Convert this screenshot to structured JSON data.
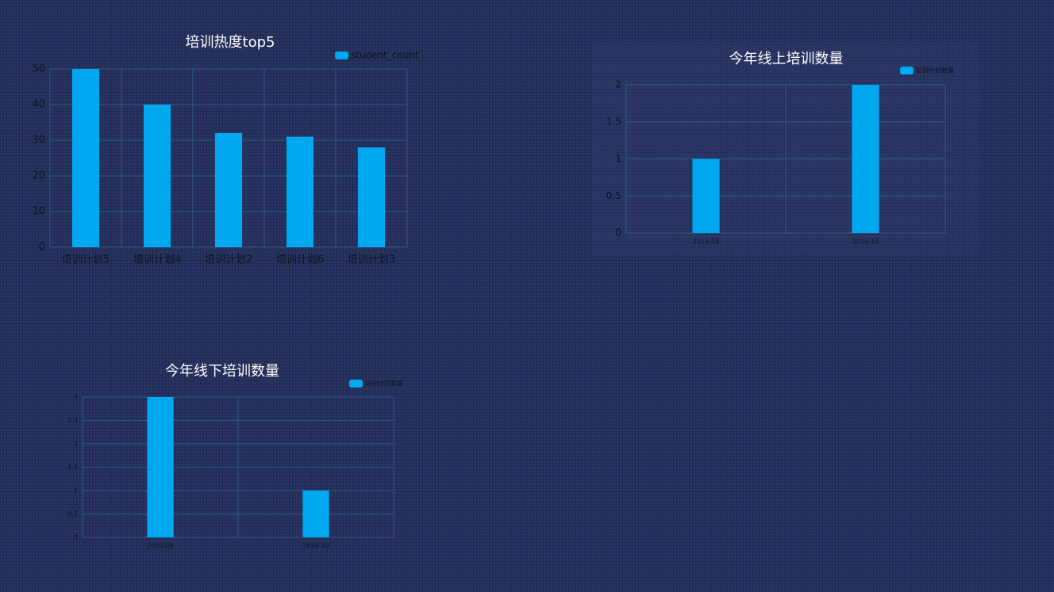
{
  "chart_data": [
    {
      "type": "bar",
      "title": "培训热度top5",
      "categories": [
        "培训计划5",
        "培训计划4",
        "培训计划2",
        "培训计划6",
        "培训计划3"
      ],
      "series": [
        {
          "name": "student_count",
          "values": [
            50,
            40,
            32,
            31,
            28
          ]
        }
      ],
      "ylim": [
        0,
        50
      ],
      "yticks": [
        "0",
        "10",
        "20",
        "30",
        "40",
        "50"
      ],
      "grid": true,
      "legend": "top-right",
      "color": "#00a8f0"
    },
    {
      "type": "bar",
      "title": "今年线上培训数量",
      "categories": [
        "2019-08",
        "2019-10"
      ],
      "series": [
        {
          "name": "培训计划数量",
          "values": [
            1,
            2
          ]
        }
      ],
      "ylim": [
        0,
        2
      ],
      "yticks": [
        "0",
        "0.5",
        "1",
        "1.5",
        "2"
      ],
      "grid": true,
      "legend": "top-right",
      "color": "#00a8f0"
    },
    {
      "type": "bar",
      "title": "今年线下培训数量",
      "categories": [
        "2019-09",
        "2019-10"
      ],
      "series": [
        {
          "name": "培训计划数量",
          "values": [
            3,
            1
          ]
        }
      ],
      "ylim": [
        0,
        3
      ],
      "yticks": [
        "0",
        "0.5",
        "1",
        "1.5",
        "2",
        "2.5",
        "3"
      ],
      "grid": true,
      "legend": "top-right",
      "color": "#00a8f0"
    }
  ]
}
